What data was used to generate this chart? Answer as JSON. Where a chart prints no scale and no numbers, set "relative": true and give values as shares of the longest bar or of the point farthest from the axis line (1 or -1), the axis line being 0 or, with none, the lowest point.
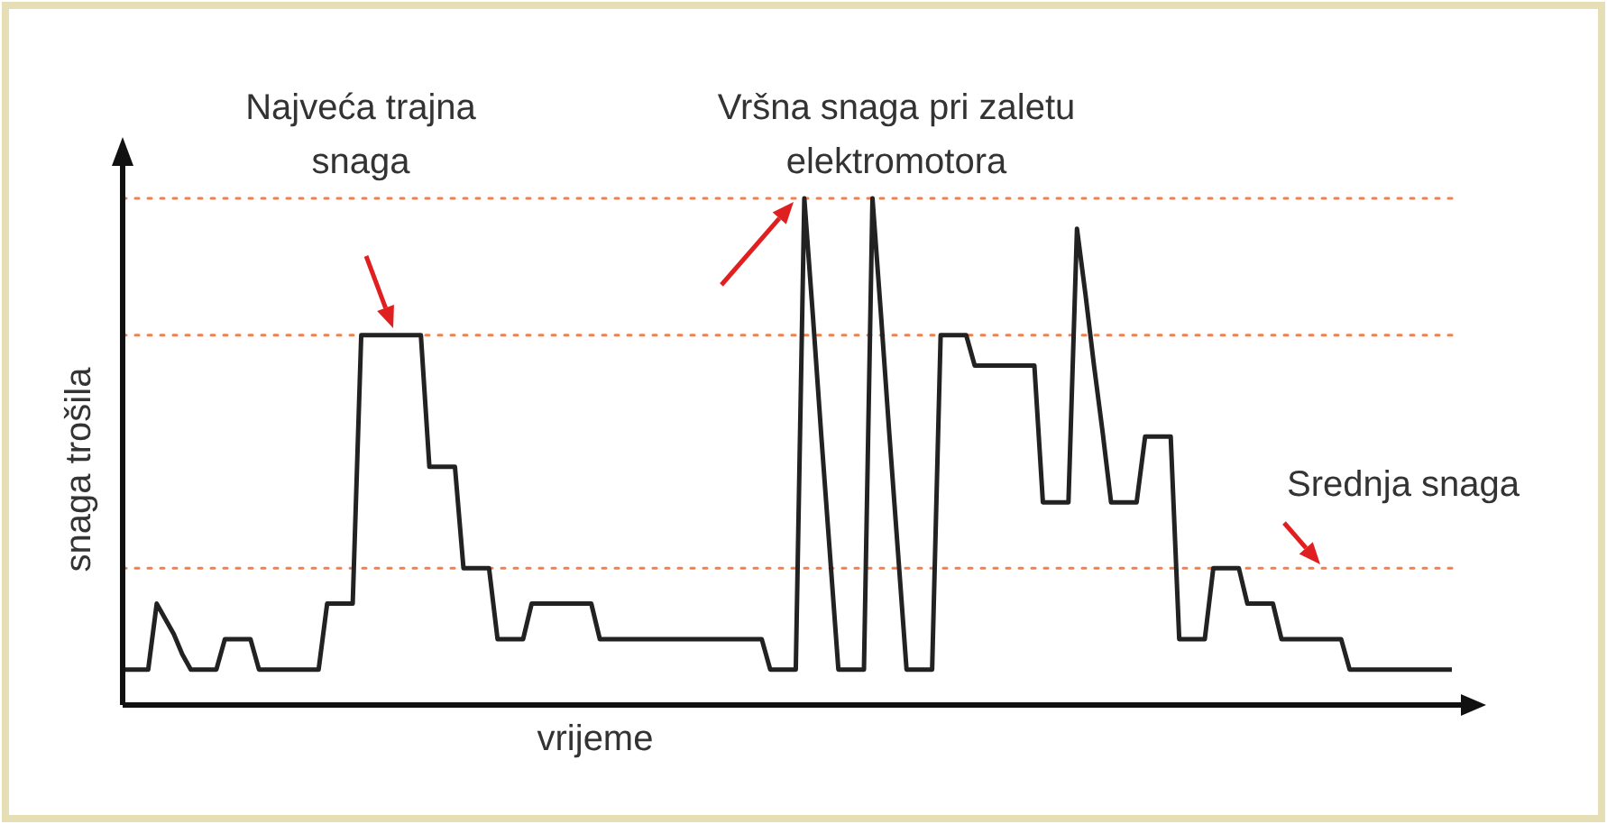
{
  "chart_data": {
    "type": "line",
    "relative": true,
    "xlabel": "vrijeme",
    "ylabel": "snaga trošila",
    "marker": "none",
    "line_style": "solid",
    "categories": [
      null,
      null,
      null,
      null,
      null,
      null,
      null,
      null,
      null,
      null,
      null,
      null,
      null,
      null,
      null,
      null,
      null,
      null,
      null,
      null,
      null,
      null,
      null,
      null,
      null,
      null,
      null,
      null,
      null,
      null,
      null,
      null,
      null,
      null,
      null,
      null,
      null,
      null,
      null,
      null,
      null,
      null,
      null,
      null,
      null,
      null,
      null,
      null,
      null,
      null,
      null,
      null,
      null,
      null,
      null,
      null,
      null,
      null,
      null,
      null,
      null,
      null,
      null,
      null,
      null,
      null,
      null,
      null,
      null,
      null,
      null,
      null,
      null,
      null,
      null,
      null,
      null,
      null,
      null,
      null,
      null,
      null,
      null,
      null,
      null,
      null,
      null,
      null,
      null,
      null,
      null,
      null,
      null,
      null,
      null,
      null,
      null,
      null,
      null,
      null,
      null,
      null,
      null,
      null,
      null,
      null,
      null,
      null,
      null,
      null,
      null,
      null,
      null,
      null,
      null,
      null,
      null,
      null,
      null,
      null,
      null,
      null,
      null,
      null,
      null,
      null,
      null,
      null,
      null,
      null,
      null,
      null,
      null,
      null,
      null,
      null,
      null,
      null,
      null,
      null,
      null,
      null,
      null,
      null,
      null,
      null,
      null,
      null,
      null,
      null,
      null,
      null,
      null,
      null,
      null,
      null,
      null
    ],
    "series": [
      {
        "color": "#222222",
        "values": [
          0.07,
          0.07,
          0.07,
          0.07,
          0.2,
          0.17,
          0.14,
          0.1,
          0.07,
          0.07,
          0.07,
          0.07,
          0.13,
          0.13,
          0.13,
          0.13,
          0.07,
          0.07,
          0.07,
          0.07,
          0.07,
          0.07,
          0.07,
          0.07,
          0.2,
          0.2,
          0.2,
          0.2,
          0.73,
          0.73,
          0.73,
          0.73,
          0.73,
          0.73,
          0.73,
          0.73,
          0.47,
          0.47,
          0.47,
          0.47,
          0.27,
          0.27,
          0.27,
          0.27,
          0.13,
          0.13,
          0.13,
          0.13,
          0.2,
          0.2,
          0.2,
          0.2,
          0.2,
          0.2,
          0.2,
          0.2,
          0.13,
          0.13,
          0.13,
          0.13,
          0.13,
          0.13,
          0.13,
          0.13,
          0.13,
          0.13,
          0.13,
          0.13,
          0.13,
          0.13,
          0.13,
          0.13,
          0.13,
          0.13,
          0.13,
          0.13,
          0.07,
          0.07,
          0.07,
          0.07,
          1,
          0.77,
          0.53,
          0.3,
          0.07,
          0.07,
          0.07,
          0.07,
          1,
          0.77,
          0.53,
          0.3,
          0.07,
          0.07,
          0.07,
          0.07,
          0.73,
          0.73,
          0.73,
          0.73,
          0.67,
          0.67,
          0.67,
          0.67,
          0.67,
          0.67,
          0.67,
          0.67,
          0.4,
          0.4,
          0.4,
          0.4,
          0.94,
          0.81,
          0.67,
          0.54,
          0.4,
          0.4,
          0.4,
          0.4,
          0.53,
          0.53,
          0.53,
          0.53,
          0.13,
          0.13,
          0.13,
          0.13,
          0.27,
          0.27,
          0.27,
          0.27,
          0.2,
          0.2,
          0.2,
          0.2,
          0.13,
          0.13,
          0.13,
          0.13,
          0.13,
          0.13,
          0.13,
          0.13,
          0.07,
          0.07,
          0.07,
          0.07,
          0.07,
          0.07,
          0.07,
          0.07,
          0.07,
          0.07,
          0.07,
          0.07,
          0.07
        ]
      }
    ],
    "ref_lines": [
      {
        "axis": "y",
        "value": 1,
        "color": "#f08050",
        "line_style": "dotted"
      },
      {
        "axis": "y",
        "value": 0.73,
        "color": "#f08050",
        "line_style": "dotted"
      },
      {
        "axis": "y",
        "value": 0.27,
        "color": "#f08050",
        "line_style": "dotted"
      }
    ],
    "annotations": [
      "Najveća trajna snaga",
      "Vršna snaga pri zaletu elektromotora",
      "Srednja snaga"
    ]
  }
}
